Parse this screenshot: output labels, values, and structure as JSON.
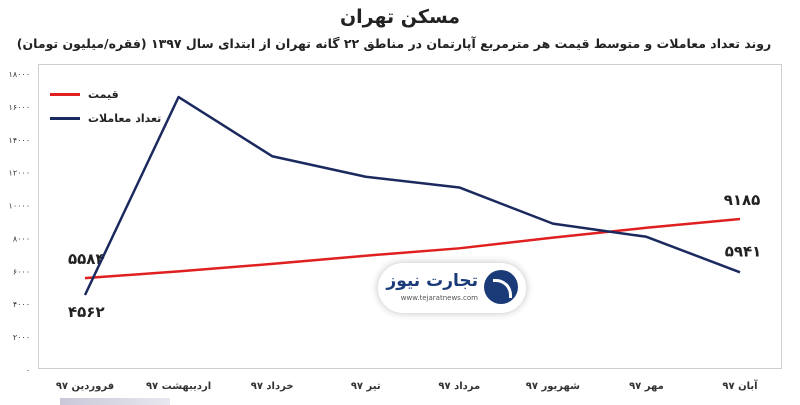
{
  "header": {
    "title": "مسکن تهران",
    "subtitle": "روند تعداد معاملات و متوسط قیمت هر مترمربع آپارتمان در مناطق ۲۲ گانه تهران از ابتدای سال ۱۳۹۷ (فقره/میلیون تومان)"
  },
  "logo": {
    "name": "تجارت نیوز",
    "url": "www.tejaratnews.com"
  },
  "chart_data": {
    "type": "line",
    "categories": [
      "فروردین ۹۷",
      "اردیبهشت ۹۷",
      "خرداد ۹۷",
      "تیر ۹۷",
      "مرداد ۹۷",
      "شهریور ۹۷",
      "مهر ۹۷",
      "آبان ۹۷"
    ],
    "yticks": [
      "۰",
      "۲۰۰۰",
      "۴۰۰۰",
      "۶۰۰۰",
      "۸۰۰۰",
      "۱۰۰۰۰",
      "۱۲۰۰۰",
      "۱۴۰۰۰",
      "۱۶۰۰۰",
      "۱۸۰۰۰"
    ],
    "ylim": [
      0,
      18000
    ],
    "legend_position": "top-left",
    "series": [
      {
        "name": "قیمت",
        "color": "#e02020",
        "values": [
          5584,
          6000,
          6450,
          6950,
          7400,
          8050,
          8650,
          9185
        ],
        "labels": [
          {
            "index": 0,
            "text": "۵۵۸۴",
            "pos": "above"
          },
          {
            "index": 7,
            "text": "۹۱۸۵",
            "pos": "above"
          }
        ]
      },
      {
        "name": "تعداد معاملات",
        "color": "#1b2a5e",
        "values": [
          4562,
          16600,
          13000,
          11750,
          11100,
          8900,
          8100,
          5941
        ],
        "labels": [
          {
            "index": 0,
            "text": "۴۵۶۲",
            "pos": "below"
          },
          {
            "index": 7,
            "text": "۵۹۴۱",
            "pos": "right"
          }
        ]
      }
    ]
  }
}
